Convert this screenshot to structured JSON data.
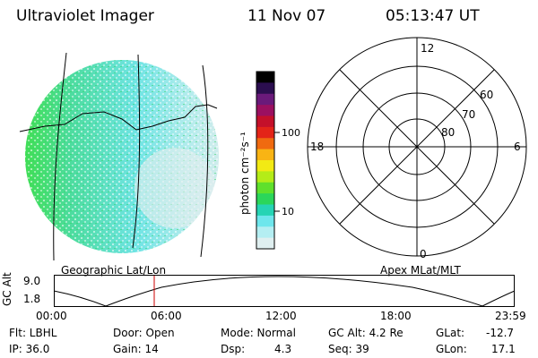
{
  "header": {
    "instrument": "Ultraviolet Imager",
    "date": "11 Nov 07",
    "time": "05:13:47 UT"
  },
  "image_panel": {
    "label": "Geographic Lat/Lon"
  },
  "colorbar": {
    "unit_label": "photon cm⁻²s⁻¹",
    "tick_labels": [
      "100",
      "10"
    ],
    "colors": [
      "#000000",
      "#2b0e4f",
      "#6a1a7a",
      "#9b1060",
      "#c4102a",
      "#e32418",
      "#f06a10",
      "#f9b414",
      "#f2ea14",
      "#b4ec18",
      "#5fe02c",
      "#2bd65a",
      "#26d4b4",
      "#6ee6ec",
      "#b4eef2",
      "#dfeff0"
    ]
  },
  "polar_plot": {
    "label": "Apex MLat/MLT",
    "mlt_labels": {
      "top": "12",
      "left": "18",
      "right": "6",
      "bottom": "0"
    },
    "lat_labels": [
      "60",
      "70",
      "80"
    ]
  },
  "altitude_plot": {
    "ylabel": "GC Alt",
    "ytick_labels": [
      "9.0",
      "1.8"
    ],
    "xtick_labels": [
      "00:00",
      "06:00",
      "12:00",
      "18:00",
      "23:59"
    ],
    "marker_color": "#cc0000"
  },
  "status": {
    "filter": "Flt: LBHL",
    "ip": "IP: 36.0",
    "door": "Door: Open",
    "gain": "Gain: 14",
    "mode": "Mode: Normal",
    "dsp_label": "Dsp:",
    "dsp_value": "4.3",
    "gc_alt": "GC Alt: 4.2 Re",
    "seq": "Seq: 39",
    "glat_label": "GLat:",
    "glat_value": "-12.7",
    "glon_label": "GLon:",
    "glon_value": "17.1"
  }
}
